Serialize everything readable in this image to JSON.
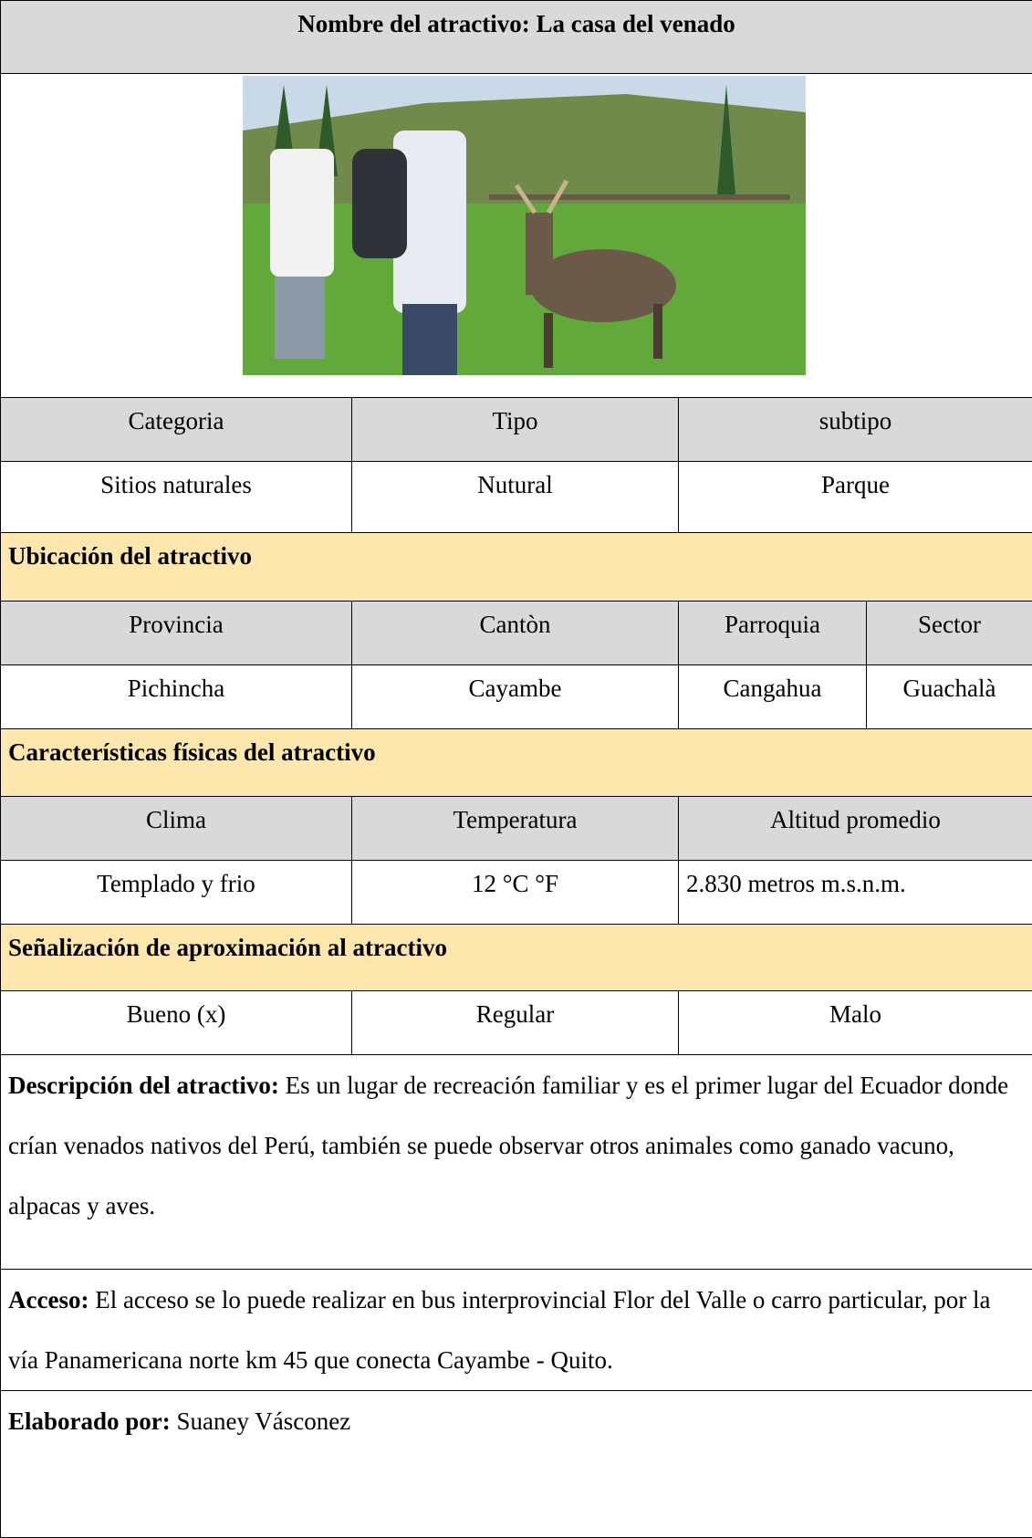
{
  "title": "Nombre del atractivo: La casa del venado",
  "classification": {
    "headers": [
      "Categoria",
      "Tipo",
      "subtipo"
    ],
    "values": [
      "Sitios naturales",
      "Nutural",
      "Parque"
    ]
  },
  "location": {
    "title": "Ubicación del atractivo",
    "headers": [
      "Provincia",
      "Cantòn",
      "Parroquia",
      "Sector"
    ],
    "values": [
      "Pichincha",
      "Cayambe",
      "Cangahua",
      "Guachalà"
    ]
  },
  "physical": {
    "title": "Características físicas del atractivo",
    "headers": [
      "Clima",
      "Temperatura",
      "Altitud promedio"
    ],
    "values": [
      "Templado y frio",
      "12 °C °F",
      "2.830 metros m.s.n.m."
    ]
  },
  "signage": {
    "title": "Señalización de aproximación al atractivo",
    "values": [
      "Bueno (x)",
      "Regular",
      "Malo"
    ]
  },
  "description": {
    "label": "Descripción del atractivo:",
    "text": "Es un lugar de recreación familiar y es el primer lugar del Ecuador donde crían venados nativos del Perú, también se puede observar otros animales como ganado vacuno, alpacas y aves."
  },
  "access": {
    "label": "Acceso:",
    "text": "El acceso se lo puede realizar en bus interprovincial Flor del Valle o carro particular, por la vía Panamericana norte km 45 que conecta Cayambe - Quito."
  },
  "author": {
    "label": "Elaborado por:",
    "text": "Suaney Vásconez"
  }
}
